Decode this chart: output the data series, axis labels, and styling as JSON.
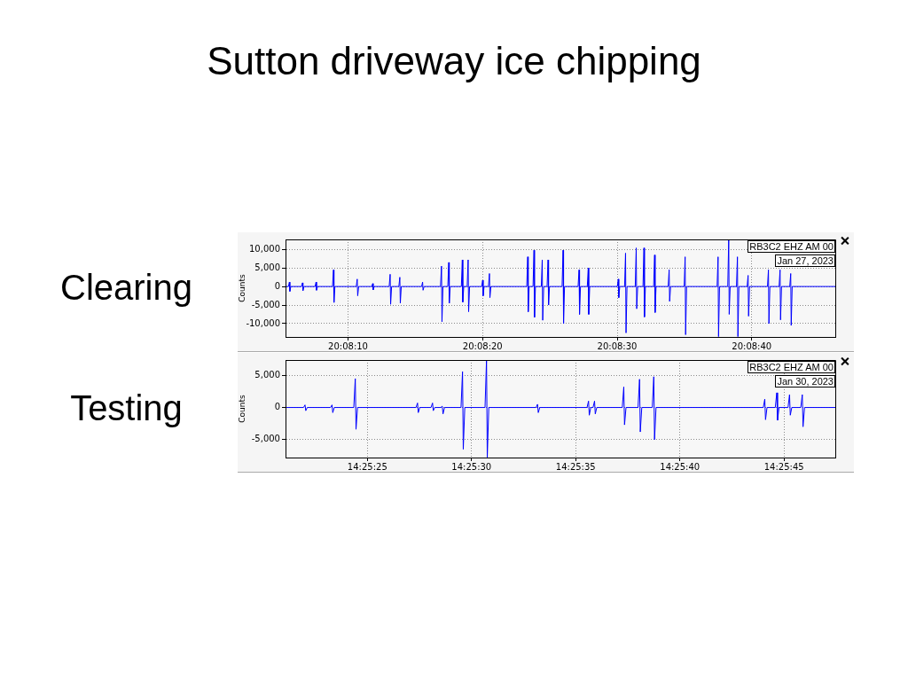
{
  "chart_data": [
    {
      "type": "line",
      "title": "Sutton driveway ice chipping",
      "subtitle": "Clearing",
      "ylabel": "Counts",
      "annotations": [
        "RB3C2 EHZ AM 00",
        "Jan 27, 2023"
      ],
      "grid": true,
      "legend": false,
      "marker": "none",
      "line_style": "solid",
      "xlim": [
        20.13482,
        20.14617
      ],
      "ylim": [
        -13600,
        12700
      ],
      "xticks": [
        {
          "value": 20.1361111,
          "label": "20:08:10"
        },
        {
          "value": 20.1388889,
          "label": "20:08:20"
        },
        {
          "value": 20.1416667,
          "label": "20:08:30"
        },
        {
          "value": 20.1444444,
          "label": "20:08:40"
        }
      ],
      "yticks": [
        {
          "value": -10000,
          "label": "-10,000"
        },
        {
          "value": -5000,
          "label": "-5,000"
        },
        0,
        {
          "value": 5000,
          "label": "5,000"
        },
        {
          "value": 10000,
          "label": "10,000"
        }
      ],
      "x": [
        20.13482,
        20.13488,
        20.1349,
        20.13491,
        20.13493,
        20.13515,
        20.13517,
        20.13518,
        20.1352,
        20.13543,
        20.13545,
        20.13546,
        20.13548,
        20.13579,
        20.13581,
        20.13582,
        20.13584,
        20.13628,
        20.1363,
        20.13631,
        20.13633,
        20.1366,
        20.13662,
        20.13663,
        20.13665,
        20.13696,
        20.13698,
        20.13699,
        20.13701,
        20.13716,
        20.13718,
        20.13719,
        20.13721,
        20.13763,
        20.13765,
        20.13766,
        20.13768,
        20.13802,
        20.13804,
        20.13805,
        20.13807,
        20.13817,
        20.13819,
        20.1382,
        20.13822,
        20.13845,
        20.13847,
        20.13848,
        20.1385,
        20.13857,
        20.13859,
        20.1386,
        20.13862,
        20.13887,
        20.13889,
        20.1389,
        20.13892,
        20.13901,
        20.13903,
        20.13904,
        20.13906,
        20.1398,
        20.13982,
        20.13983,
        20.13985,
        20.13993,
        20.13995,
        20.13996,
        20.13998,
        20.1401,
        20.14012,
        20.14013,
        20.14015,
        20.14022,
        20.14024,
        20.14025,
        20.14027,
        20.14053,
        20.14055,
        20.14056,
        20.14058,
        20.14086,
        20.14088,
        20.14089,
        20.14091,
        20.14105,
        20.14107,
        20.14108,
        20.1411,
        20.14167,
        20.14169,
        20.1417,
        20.14172,
        20.14182,
        20.14184,
        20.14185,
        20.14187,
        20.14204,
        20.14206,
        20.14207,
        20.14209,
        20.1422,
        20.14222,
        20.14223,
        20.14225,
        20.14242,
        20.14244,
        20.14245,
        20.14247,
        20.14272,
        20.14274,
        20.14275,
        20.14277,
        20.14305,
        20.14307,
        20.14308,
        20.1431,
        20.14373,
        20.14375,
        20.14376,
        20.14378,
        20.14395,
        20.14397,
        20.14398,
        20.144,
        20.14413,
        20.14415,
        20.14416,
        20.14418,
        20.14435,
        20.14437,
        20.14438,
        20.1444,
        20.14477,
        20.14479,
        20.1448,
        20.14482,
        20.14501,
        20.14503,
        20.14504,
        20.14506,
        20.14523,
        20.14525,
        20.14526,
        20.14528,
        20.14617
      ],
      "series": [
        {
          "color": "#0000ff",
          "values": [
            0,
            0,
            1200,
            -1300,
            0,
            0,
            1000,
            -1100,
            0,
            0,
            1200,
            -1000,
            0,
            0,
            4500,
            -4300,
            0,
            0,
            2000,
            -2500,
            0,
            0,
            800,
            -900,
            0,
            0,
            3300,
            -4800,
            0,
            0,
            2500,
            -4500,
            0,
            0,
            1200,
            -1000,
            0,
            0,
            5500,
            -9500,
            0,
            0,
            6500,
            -4500,
            0,
            0,
            7200,
            -4200,
            0,
            0,
            7200,
            -6800,
            0,
            0,
            1700,
            -2500,
            0,
            0,
            3500,
            -3000,
            0,
            0,
            8000,
            -6800,
            0,
            0,
            9800,
            -8300,
            0,
            0,
            7200,
            -9100,
            0,
            0,
            7200,
            -5000,
            0,
            0,
            9800,
            -10000,
            0,
            0,
            4500,
            -7500,
            0,
            0,
            5000,
            -7500,
            0,
            0,
            2000,
            -3000,
            0,
            0,
            9000,
            -12500,
            0,
            0,
            10400,
            -6000,
            0,
            0,
            10400,
            -8200,
            0,
            0,
            8500,
            -7000,
            0,
            0,
            4500,
            -4000,
            0,
            0,
            8000,
            -13000,
            0,
            0,
            8000,
            -13500,
            0,
            0,
            12600,
            -7500,
            0,
            0,
            8000,
            -13500,
            0,
            0,
            3000,
            -8000,
            0,
            0,
            4500,
            -10000,
            0,
            0,
            4500,
            -9000,
            0,
            0,
            3500,
            -10500,
            0,
            0
          ]
        }
      ]
    },
    {
      "type": "line",
      "subtitle": "Testing",
      "ylabel": "Counts",
      "annotations": [
        "RB3C2 EHZ AM 00",
        "Jan 30, 2023"
      ],
      "grid": true,
      "legend": false,
      "marker": "none",
      "line_style": "solid",
      "xlim": [
        14.42252,
        14.42985
      ],
      "ylim": [
        -7800,
        7400
      ],
      "xticks": [
        {
          "value": 14.4236111,
          "label": "14:25:25"
        },
        {
          "value": 14.425,
          "label": "14:25:30"
        },
        {
          "value": 14.4263889,
          "label": "14:25:35"
        },
        {
          "value": 14.4277778,
          "label": "14:25:40"
        },
        {
          "value": 14.4291667,
          "label": "14:25:45"
        }
      ],
      "yticks": [
        {
          "value": -5000,
          "label": "-5,000"
        },
        0,
        {
          "value": 5000,
          "label": "5,000"
        }
      ],
      "x": [
        14.42252,
        14.42276,
        14.42278,
        14.42279,
        14.42281,
        14.42312,
        14.42314,
        14.42315,
        14.42317,
        14.42343,
        14.42345,
        14.42346,
        14.42348,
        14.42426,
        14.42428,
        14.42429,
        14.42431,
        14.42446,
        14.42448,
        14.42449,
        14.42451,
        14.42459,
        14.42461,
        14.42462,
        14.42464,
        14.42486,
        14.42488,
        14.42489,
        14.42491,
        14.42518,
        14.4252,
        14.42521,
        14.42523,
        14.42586,
        14.42588,
        14.42589,
        14.42591,
        14.42654,
        14.42656,
        14.42657,
        14.42659,
        14.42662,
        14.42664,
        14.42665,
        14.42667,
        14.42701,
        14.42703,
        14.42704,
        14.42706,
        14.42722,
        14.42724,
        14.42725,
        14.42727,
        14.42741,
        14.42743,
        14.42744,
        14.42746,
        14.42889,
        14.42891,
        14.42892,
        14.42894,
        14.42905,
        14.42907,
        14.42908,
        14.4291,
        14.42922,
        14.42924,
        14.42925,
        14.42927,
        14.42939,
        14.42941,
        14.42942,
        14.42944,
        14.42985
      ],
      "series": [
        {
          "color": "#0000ff",
          "values": [
            0,
            0,
            400,
            -500,
            0,
            0,
            400,
            -800,
            0,
            0,
            4500,
            -3400,
            0,
            0,
            700,
            -800,
            0,
            0,
            700,
            -500,
            0,
            0,
            200,
            -1000,
            0,
            0,
            5600,
            -6500,
            0,
            0,
            7400,
            -7800,
            0,
            0,
            500,
            -800,
            0,
            0,
            1000,
            -1200,
            0,
            0,
            1000,
            -1000,
            0,
            0,
            3200,
            -2700,
            0,
            0,
            4400,
            -3800,
            0,
            0,
            4800,
            -5000,
            0,
            0,
            1300,
            -1900,
            0,
            0,
            2300,
            -2000,
            0,
            0,
            2000,
            -1200,
            0,
            0,
            2000,
            -3000,
            0,
            0
          ]
        }
      ]
    }
  ]
}
